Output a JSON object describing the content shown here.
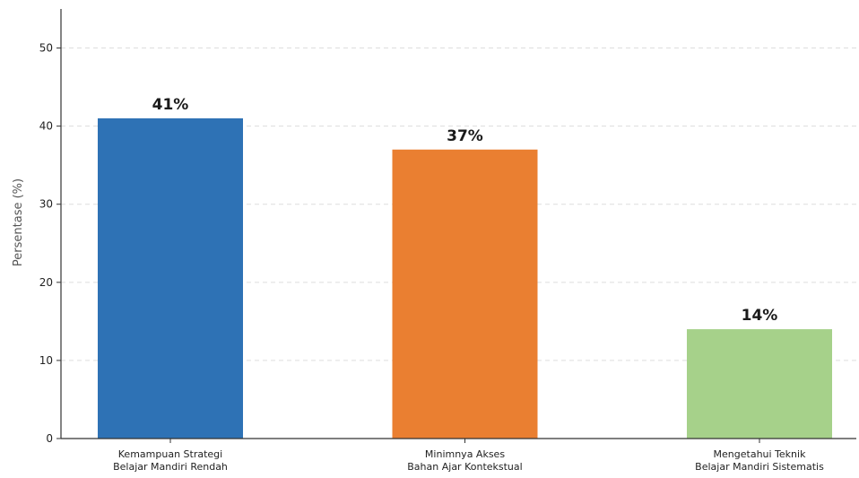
{
  "chart_data": {
    "type": "bar",
    "title": "",
    "xlabel": "",
    "ylabel": "Persentase (%)",
    "ylim": [
      0,
      55
    ],
    "yticks": [
      0,
      10,
      20,
      30,
      40,
      50
    ],
    "grid": true,
    "categories": [
      [
        "Kemampuan Strategi",
        "Belajar Mandiri Rendah"
      ],
      [
        "Minimnya Akses",
        "Bahan Ajar Kontekstual"
      ],
      [
        "Mengetahui Teknik",
        "Belajar Mandiri Sistematis"
      ]
    ],
    "values": [
      41,
      37,
      14
    ],
    "data_labels": [
      "41%",
      "37%",
      "14%"
    ],
    "colors": [
      "#2e72b5",
      "#ea7f31",
      "#a6d18a"
    ]
  }
}
